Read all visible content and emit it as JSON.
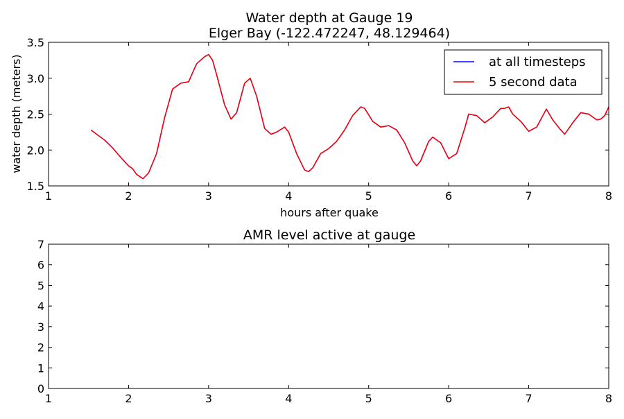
{
  "chart_data": [
    {
      "type": "line",
      "title": "Water depth at Gauge 19",
      "subtitle": "Elger Bay  (-122.472247, 48.129464)",
      "xlabel": "hours after quake",
      "ylabel": "water depth (meters)",
      "xlim": [
        1,
        8
      ],
      "ylim": [
        1.5,
        3.5
      ],
      "xticks": [
        "1",
        "2",
        "3",
        "4",
        "5",
        "6",
        "7",
        "8"
      ],
      "yticks": [
        "1.5",
        "2.0",
        "2.5",
        "3.0",
        "3.5"
      ],
      "grid": false,
      "legend_position": "top-right",
      "series": [
        {
          "name": "at all timesteps",
          "color": "#0000ff",
          "x": [
            1.53,
            1.6,
            1.7,
            1.8,
            1.9,
            2.0,
            2.05,
            2.1,
            2.18,
            2.25,
            2.35,
            2.45,
            2.55,
            2.65,
            2.75,
            2.85,
            2.95,
            3.0,
            3.05,
            3.1,
            3.2,
            3.28,
            3.35,
            3.45,
            3.52,
            3.6,
            3.7,
            3.78,
            3.85,
            3.95,
            4.0,
            4.1,
            4.2,
            4.25,
            4.3,
            4.4,
            4.5,
            4.6,
            4.7,
            4.8,
            4.9,
            4.95,
            5.05,
            5.15,
            5.25,
            5.35,
            5.45,
            5.55,
            5.6,
            5.65,
            5.75,
            5.8,
            5.9,
            6.0,
            6.1,
            6.2,
            6.25,
            6.35,
            6.45,
            6.55,
            6.65,
            6.7,
            6.75,
            6.8,
            6.9,
            7.0,
            7.1,
            7.22,
            7.3,
            7.4,
            7.45,
            7.55,
            7.65,
            7.75,
            7.85,
            7.9,
            7.95,
            8.0
          ],
          "values": [
            2.28,
            2.22,
            2.14,
            2.03,
            1.9,
            1.78,
            1.74,
            1.66,
            1.6,
            1.68,
            1.95,
            2.45,
            2.85,
            2.93,
            2.95,
            3.2,
            3.3,
            3.33,
            3.25,
            3.05,
            2.63,
            2.43,
            2.52,
            2.93,
            3.0,
            2.75,
            2.3,
            2.22,
            2.25,
            2.32,
            2.25,
            1.95,
            1.72,
            1.7,
            1.75,
            1.95,
            2.02,
            2.12,
            2.28,
            2.48,
            2.6,
            2.58,
            2.4,
            2.32,
            2.34,
            2.28,
            2.1,
            1.85,
            1.78,
            1.85,
            2.12,
            2.18,
            2.1,
            1.88,
            1.95,
            2.3,
            2.5,
            2.48,
            2.38,
            2.46,
            2.58,
            2.58,
            2.6,
            2.5,
            2.4,
            2.26,
            2.32,
            2.57,
            2.42,
            2.28,
            2.22,
            2.38,
            2.52,
            2.5,
            2.42,
            2.43,
            2.48,
            2.6
          ]
        },
        {
          "name": "5 second data",
          "color": "#ff0000",
          "x": [
            1.53,
            1.6,
            1.7,
            1.8,
            1.9,
            2.0,
            2.05,
            2.1,
            2.18,
            2.25,
            2.35,
            2.45,
            2.55,
            2.65,
            2.75,
            2.85,
            2.95,
            3.0,
            3.05,
            3.1,
            3.2,
            3.28,
            3.35,
            3.45,
            3.52,
            3.6,
            3.7,
            3.78,
            3.85,
            3.95,
            4.0,
            4.1,
            4.2,
            4.25,
            4.3,
            4.4,
            4.5,
            4.6,
            4.7,
            4.8,
            4.9,
            4.95,
            5.05,
            5.15,
            5.25,
            5.35,
            5.45,
            5.55,
            5.6,
            5.65,
            5.75,
            5.8,
            5.9,
            6.0,
            6.1,
            6.2,
            6.25,
            6.35,
            6.45,
            6.55,
            6.65,
            6.7,
            6.75,
            6.8,
            6.9,
            7.0,
            7.1,
            7.22,
            7.3,
            7.4,
            7.45,
            7.55,
            7.65,
            7.75,
            7.85,
            7.9,
            7.95,
            8.0
          ],
          "values": [
            2.28,
            2.22,
            2.14,
            2.03,
            1.9,
            1.78,
            1.74,
            1.66,
            1.6,
            1.68,
            1.95,
            2.45,
            2.85,
            2.93,
            2.95,
            3.2,
            3.3,
            3.33,
            3.25,
            3.05,
            2.63,
            2.43,
            2.52,
            2.93,
            3.0,
            2.75,
            2.3,
            2.22,
            2.25,
            2.32,
            2.25,
            1.95,
            1.72,
            1.7,
            1.75,
            1.95,
            2.02,
            2.12,
            2.28,
            2.48,
            2.6,
            2.58,
            2.4,
            2.32,
            2.34,
            2.28,
            2.1,
            1.85,
            1.78,
            1.85,
            2.12,
            2.18,
            2.1,
            1.88,
            1.95,
            2.3,
            2.5,
            2.48,
            2.38,
            2.46,
            2.58,
            2.58,
            2.6,
            2.5,
            2.4,
            2.26,
            2.32,
            2.57,
            2.42,
            2.28,
            2.22,
            2.38,
            2.52,
            2.5,
            2.42,
            2.43,
            2.48,
            2.6
          ]
        }
      ]
    },
    {
      "type": "line",
      "title": "AMR level active at gauge",
      "xlabel": "",
      "ylabel": "",
      "xlim": [
        1,
        8
      ],
      "ylim": [
        0,
        7
      ],
      "xticks": [
        "1",
        "2",
        "3",
        "4",
        "5",
        "6",
        "7",
        "8"
      ],
      "yticks": [
        "0",
        "1",
        "2",
        "3",
        "4",
        "5",
        "6",
        "7"
      ],
      "grid": false,
      "series": []
    }
  ]
}
